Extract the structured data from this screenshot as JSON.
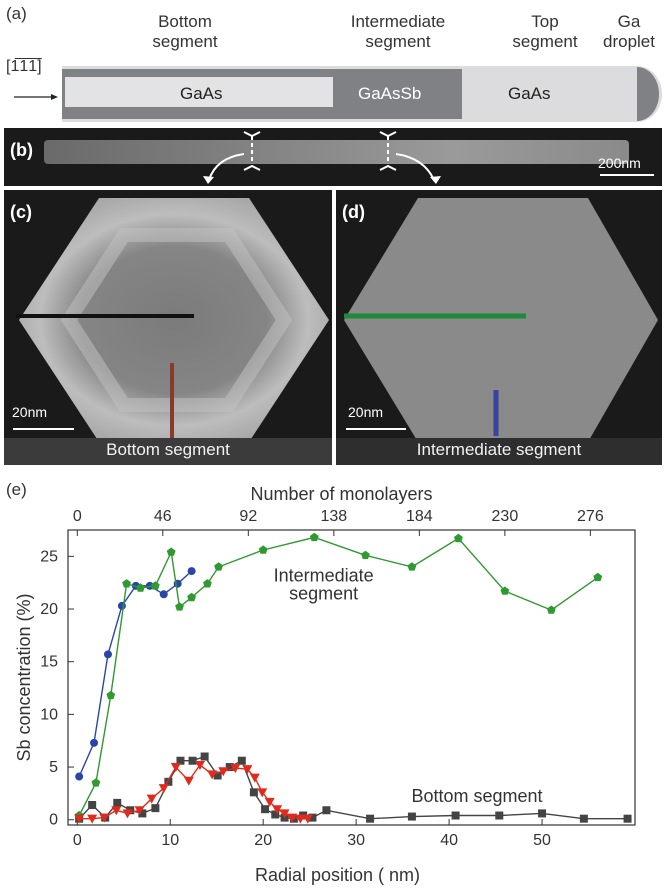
{
  "panel_a": {
    "letter": "(a)",
    "bottom_segment": "Bottom\nsegment",
    "intermediate_segment": "Intermediate\nsegment",
    "top_segment": "Top\nsegment",
    "ga_droplet": "Ga\ndroplet",
    "direction": "[1̅1̅1̅]",
    "gaas_left": "GaAs",
    "gaassb": "GaAsSb",
    "gaas_right": "GaAs"
  },
  "panel_b": {
    "letter": "(b)",
    "scale_bar": "200nm"
  },
  "panel_c": {
    "letter": "(c)",
    "scale_bar": "20nm",
    "label": "Bottom segment"
  },
  "panel_d": {
    "letter": "(d)",
    "scale_bar": "20nm",
    "label": "Intermediate segment"
  },
  "panel_e": {
    "letter": "(e)"
  },
  "chart_data": {
    "type": "line",
    "xlabel": "Radial position ( nm)",
    "ylabel": "Sb concentration (%)",
    "top_xlabel": "Number of monolayers",
    "xlim": [
      -1,
      60
    ],
    "ylim": [
      -0.5,
      27.5
    ],
    "xticks": [
      0,
      10,
      20,
      30,
      40,
      50
    ],
    "yticks": [
      0,
      5,
      10,
      15,
      20,
      25
    ],
    "top_ticks": [
      {
        "nm": 0,
        "label": "0"
      },
      {
        "nm": 9.2,
        "label": "46"
      },
      {
        "nm": 18.4,
        "label": "92"
      },
      {
        "nm": 27.6,
        "label": "138"
      },
      {
        "nm": 36.8,
        "label": "184"
      },
      {
        "nm": 46.0,
        "label": "230"
      },
      {
        "nm": 55.2,
        "label": "276"
      }
    ],
    "annotations": [
      {
        "text": "Intermediate",
        "x": 26.5,
        "y": 22.6
      },
      {
        "text": "segment",
        "x": 26.5,
        "y": 20.9
      },
      {
        "text": "Bottom segment",
        "x": 43,
        "y": 1.7
      }
    ],
    "series": [
      {
        "color": "#2a45a8",
        "marker": "circle",
        "x": [
          0.2,
          1.8,
          3.3,
          4.8,
          6.3,
          7.8,
          9.3,
          10.8,
          12.3
        ],
        "y": [
          4.1,
          7.3,
          15.7,
          20.3,
          22.2,
          22.2,
          21.4,
          22.4,
          23.6
        ]
      },
      {
        "color": "#2f9a2f",
        "marker": "pentagon",
        "x": [
          0.2,
          2.0,
          3.6,
          5.3,
          6.8,
          8.4,
          10.1,
          11.0,
          12.3,
          14.0,
          15.2,
          20.0,
          25.5,
          31.0,
          36.0,
          41.0,
          46.0,
          51.0,
          56.0
        ],
        "y": [
          0.4,
          3.5,
          11.8,
          22.4,
          22.0,
          22.2,
          25.4,
          20.2,
          21.1,
          22.4,
          24.0,
          25.6,
          26.8,
          25.1,
          24.0,
          26.7,
          21.7,
          19.9,
          23.0
        ]
      },
      {
        "color": "#444444",
        "marker": "square",
        "x": [
          0.2,
          1.6,
          3.0,
          4.3,
          5.7,
          7.0,
          8.4,
          9.8,
          11.1,
          12.4,
          13.7,
          15.1,
          16.4,
          17.7,
          19.0,
          20.2,
          21.3,
          22.3,
          23.3,
          24.3,
          25.3,
          26.8,
          31.5,
          36.0,
          40.7,
          45.4,
          50.0,
          54.5,
          59.2
        ],
        "y": [
          0.1,
          1.4,
          0.2,
          1.6,
          0.9,
          0.6,
          1.1,
          3.6,
          5.6,
          5.6,
          6.0,
          4.2,
          5.0,
          5.6,
          2.6,
          1.0,
          0.5,
          0.2,
          0.1,
          0.4,
          0.2,
          0.9,
          0.1,
          0.3,
          0.4,
          0.4,
          0.6,
          0.1,
          0.1
        ]
      },
      {
        "color": "#e12a1c",
        "marker": "triangle-down",
        "x": [
          0.2,
          1.6,
          2.9,
          4.2,
          5.4,
          6.7,
          8.0,
          9.3,
          10.6,
          12.0,
          13.2,
          14.5,
          15.7,
          17.0,
          18.3,
          19.1,
          19.9,
          20.7,
          21.5,
          22.3,
          23.1,
          24.0,
          24.8
        ],
        "y": [
          0.1,
          0.1,
          0.2,
          0.9,
          0.6,
          0.9,
          2.0,
          3.0,
          5.0,
          3.7,
          5.2,
          4.3,
          4.6,
          4.9,
          4.8,
          4.0,
          2.6,
          1.7,
          1.0,
          0.6,
          0.2,
          0.1,
          0.1
        ]
      }
    ]
  }
}
